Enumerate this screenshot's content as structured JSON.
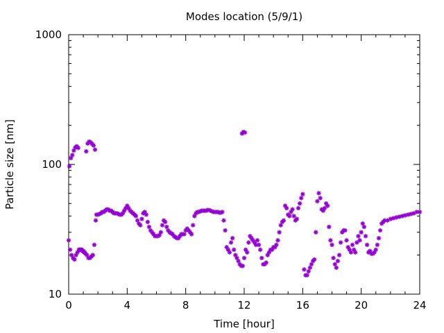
{
  "chart_data": {
    "type": "scatter",
    "title": "Modes location (5/9/1)",
    "xlabel": "Time [hour]",
    "ylabel": "Particle size [nm]",
    "xlim": [
      0,
      24
    ],
    "ylim": [
      10,
      1000
    ],
    "yscale": "log",
    "xticks": [
      0,
      4,
      8,
      12,
      16,
      20,
      24
    ],
    "xtick_labels": [
      "0",
      "4",
      "8",
      "12",
      "16",
      "20",
      "24"
    ],
    "yticks": [
      10,
      100,
      1000
    ],
    "ytick_labels": [
      "10",
      "100",
      "1000"
    ],
    "grid": false,
    "legend": "none",
    "marker": "asterisk",
    "color": "#9400d3",
    "series": [
      {
        "points": [
          [
            0.0,
            26
          ],
          [
            0.05,
            97
          ],
          [
            0.1,
            22
          ],
          [
            0.15,
            112
          ],
          [
            0.2,
            20
          ],
          [
            0.25,
            118
          ],
          [
            0.3,
            19
          ],
          [
            0.35,
            128
          ],
          [
            0.4,
            18.5
          ],
          [
            0.45,
            135
          ],
          [
            0.5,
            20
          ],
          [
            0.55,
            138
          ],
          [
            0.6,
            21
          ],
          [
            0.65,
            134
          ],
          [
            0.7,
            22
          ],
          [
            0.75,
            22
          ],
          [
            0.8,
            22
          ],
          [
            0.85,
            22
          ],
          [
            0.9,
            22
          ],
          [
            0.95,
            21.5
          ],
          [
            1.0,
            21.5
          ],
          [
            1.05,
            21
          ],
          [
            1.1,
            21
          ],
          [
            1.15,
            20.5
          ],
          [
            1.2,
            126
          ],
          [
            1.25,
            20
          ],
          [
            1.3,
            145
          ],
          [
            1.35,
            19
          ],
          [
            1.4,
            150
          ],
          [
            1.45,
            19
          ],
          [
            1.5,
            148
          ],
          [
            1.55,
            19.5
          ],
          [
            1.6,
            144
          ],
          [
            1.65,
            20
          ],
          [
            1.7,
            140
          ],
          [
            1.75,
            24
          ],
          [
            1.8,
            130
          ],
          [
            1.85,
            37
          ],
          [
            1.9,
            41
          ],
          [
            2.0,
            41
          ],
          [
            2.1,
            41.5
          ],
          [
            2.2,
            42
          ],
          [
            2.3,
            43
          ],
          [
            2.4,
            43
          ],
          [
            2.5,
            44
          ],
          [
            2.6,
            45
          ],
          [
            2.7,
            45
          ],
          [
            2.8,
            44
          ],
          [
            2.9,
            44
          ],
          [
            3.0,
            43
          ],
          [
            3.1,
            42
          ],
          [
            3.2,
            42
          ],
          [
            3.3,
            42
          ],
          [
            3.4,
            41.5
          ],
          [
            3.5,
            41
          ],
          [
            3.6,
            41
          ],
          [
            3.7,
            42
          ],
          [
            3.8,
            44
          ],
          [
            3.9,
            46
          ],
          [
            4.0,
            48
          ],
          [
            4.1,
            46
          ],
          [
            4.2,
            44
          ],
          [
            4.3,
            43
          ],
          [
            4.4,
            42
          ],
          [
            4.5,
            41
          ],
          [
            4.6,
            40
          ],
          [
            4.7,
            37
          ],
          [
            4.8,
            35
          ],
          [
            4.9,
            34
          ],
          [
            5.0,
            38
          ],
          [
            5.1,
            42
          ],
          [
            5.2,
            43
          ],
          [
            5.3,
            41
          ],
          [
            5.4,
            36
          ],
          [
            5.5,
            33
          ],
          [
            5.6,
            31
          ],
          [
            5.7,
            30
          ],
          [
            5.8,
            29
          ],
          [
            5.9,
            28
          ],
          [
            6.0,
            28
          ],
          [
            6.1,
            28
          ],
          [
            6.2,
            28.5
          ],
          [
            6.3,
            30
          ],
          [
            6.4,
            34
          ],
          [
            6.5,
            37
          ],
          [
            6.6,
            36
          ],
          [
            6.7,
            33
          ],
          [
            6.8,
            31
          ],
          [
            6.9,
            30
          ],
          [
            7.0,
            29.5
          ],
          [
            7.1,
            29
          ],
          [
            7.2,
            28
          ],
          [
            7.3,
            27.5
          ],
          [
            7.4,
            27
          ],
          [
            7.5,
            27
          ],
          [
            7.6,
            28
          ],
          [
            7.7,
            29
          ],
          [
            7.8,
            29
          ],
          [
            7.9,
            29
          ],
          [
            8.0,
            31
          ],
          [
            8.1,
            32
          ],
          [
            8.2,
            31
          ],
          [
            8.3,
            30
          ],
          [
            8.4,
            29
          ],
          [
            8.5,
            34
          ],
          [
            8.6,
            40
          ],
          [
            8.7,
            42
          ],
          [
            8.8,
            43
          ],
          [
            8.9,
            43
          ],
          [
            9.0,
            43.5
          ],
          [
            9.1,
            44
          ],
          [
            9.2,
            44
          ],
          [
            9.3,
            44
          ],
          [
            9.4,
            44
          ],
          [
            9.5,
            44.5
          ],
          [
            9.6,
            44.5
          ],
          [
            9.7,
            44
          ],
          [
            9.8,
            43.5
          ],
          [
            9.9,
            43
          ],
          [
            10.0,
            43
          ],
          [
            10.1,
            43
          ],
          [
            10.2,
            43
          ],
          [
            10.3,
            42.5
          ],
          [
            10.4,
            42.5
          ],
          [
            10.5,
            43
          ],
          [
            10.6,
            37
          ],
          [
            10.7,
            31
          ],
          [
            10.8,
            23
          ],
          [
            10.9,
            22
          ],
          [
            11.0,
            21
          ],
          [
            11.1,
            25
          ],
          [
            11.2,
            27
          ],
          [
            11.3,
            22
          ],
          [
            11.4,
            20
          ],
          [
            11.5,
            19
          ],
          [
            11.6,
            18
          ],
          [
            11.7,
            17
          ],
          [
            11.8,
            16.5
          ],
          [
            11.9,
            16.5
          ],
          [
            12.0,
            19
          ],
          [
            12.1,
            22
          ],
          [
            12.2,
            21
          ],
          [
            12.3,
            25
          ],
          [
            12.4,
            28
          ],
          [
            12.5,
            27
          ],
          [
            12.6,
            26
          ],
          [
            12.7,
            25
          ],
          [
            12.8,
            24
          ],
          [
            12.9,
            26
          ],
          [
            13.0,
            24
          ],
          [
            13.1,
            22
          ],
          [
            13.2,
            19
          ],
          [
            13.3,
            17
          ],
          [
            13.4,
            17
          ],
          [
            13.5,
            17.5
          ],
          [
            13.6,
            20
          ],
          [
            13.7,
            21
          ],
          [
            13.8,
            22
          ],
          [
            13.9,
            22
          ],
          [
            14.0,
            23
          ],
          [
            14.1,
            23
          ],
          [
            14.2,
            24
          ],
          [
            14.3,
            26
          ],
          [
            14.4,
            30
          ],
          [
            14.5,
            34
          ],
          [
            14.6,
            36
          ],
          [
            14.7,
            37
          ],
          [
            14.8,
            48
          ],
          [
            14.9,
            46
          ],
          [
            15.0,
            41
          ],
          [
            15.1,
            40
          ],
          [
            15.2,
            43
          ],
          [
            15.3,
            45
          ],
          [
            15.4,
            40
          ],
          [
            15.5,
            37
          ],
          [
            15.6,
            38
          ],
          [
            15.7,
            46
          ],
          [
            15.8,
            50
          ],
          [
            15.9,
            55
          ],
          [
            16.0,
            59
          ],
          [
            16.1,
            15.5
          ],
          [
            16.2,
            14
          ],
          [
            16.3,
            14
          ],
          [
            16.4,
            15
          ],
          [
            16.5,
            16
          ],
          [
            16.6,
            17
          ],
          [
            16.7,
            18
          ],
          [
            16.8,
            18.5
          ],
          [
            16.9,
            30
          ],
          [
            17.0,
            52
          ],
          [
            17.1,
            60
          ],
          [
            17.2,
            55
          ],
          [
            17.3,
            45
          ],
          [
            17.4,
            44
          ],
          [
            17.5,
            46
          ],
          [
            17.6,
            50
          ],
          [
            17.7,
            48
          ],
          [
            17.8,
            33
          ],
          [
            17.9,
            26
          ],
          [
            18.0,
            24
          ],
          [
            18.1,
            19
          ],
          [
            18.2,
            17
          ],
          [
            18.3,
            16
          ],
          [
            18.4,
            18
          ],
          [
            18.5,
            20
          ],
          [
            18.6,
            25
          ],
          [
            18.7,
            30
          ],
          [
            18.8,
            31
          ],
          [
            18.9,
            31
          ],
          [
            19.0,
            26
          ],
          [
            19.1,
            23
          ],
          [
            19.2,
            22
          ],
          [
            19.3,
            21
          ],
          [
            19.4,
            24
          ],
          [
            19.5,
            22
          ],
          [
            19.6,
            21
          ],
          [
            19.7,
            25
          ],
          [
            19.8,
            28
          ],
          [
            19.9,
            26
          ],
          [
            20.0,
            30
          ],
          [
            20.1,
            35
          ],
          [
            20.2,
            33
          ],
          [
            20.3,
            28
          ],
          [
            20.4,
            24
          ],
          [
            20.5,
            21
          ],
          [
            20.6,
            21.5
          ],
          [
            20.7,
            20.5
          ],
          [
            20.8,
            20.5
          ],
          [
            20.9,
            21
          ],
          [
            21.0,
            22
          ],
          [
            21.1,
            24
          ],
          [
            21.2,
            27
          ],
          [
            21.3,
            31
          ],
          [
            21.4,
            35
          ],
          [
            21.5,
            36
          ],
          [
            21.6,
            37
          ],
          [
            21.8,
            37
          ],
          [
            22.0,
            38
          ],
          [
            22.2,
            38.5
          ],
          [
            22.4,
            39
          ],
          [
            22.6,
            39.5
          ],
          [
            22.8,
            40
          ],
          [
            23.0,
            40.5
          ],
          [
            23.2,
            41
          ],
          [
            23.4,
            41.5
          ],
          [
            23.6,
            42
          ],
          [
            23.8,
            43
          ],
          [
            24.0,
            43
          ],
          [
            11.85,
            173
          ],
          [
            11.95,
            178
          ],
          [
            12.05,
            176
          ]
        ]
      }
    ]
  }
}
